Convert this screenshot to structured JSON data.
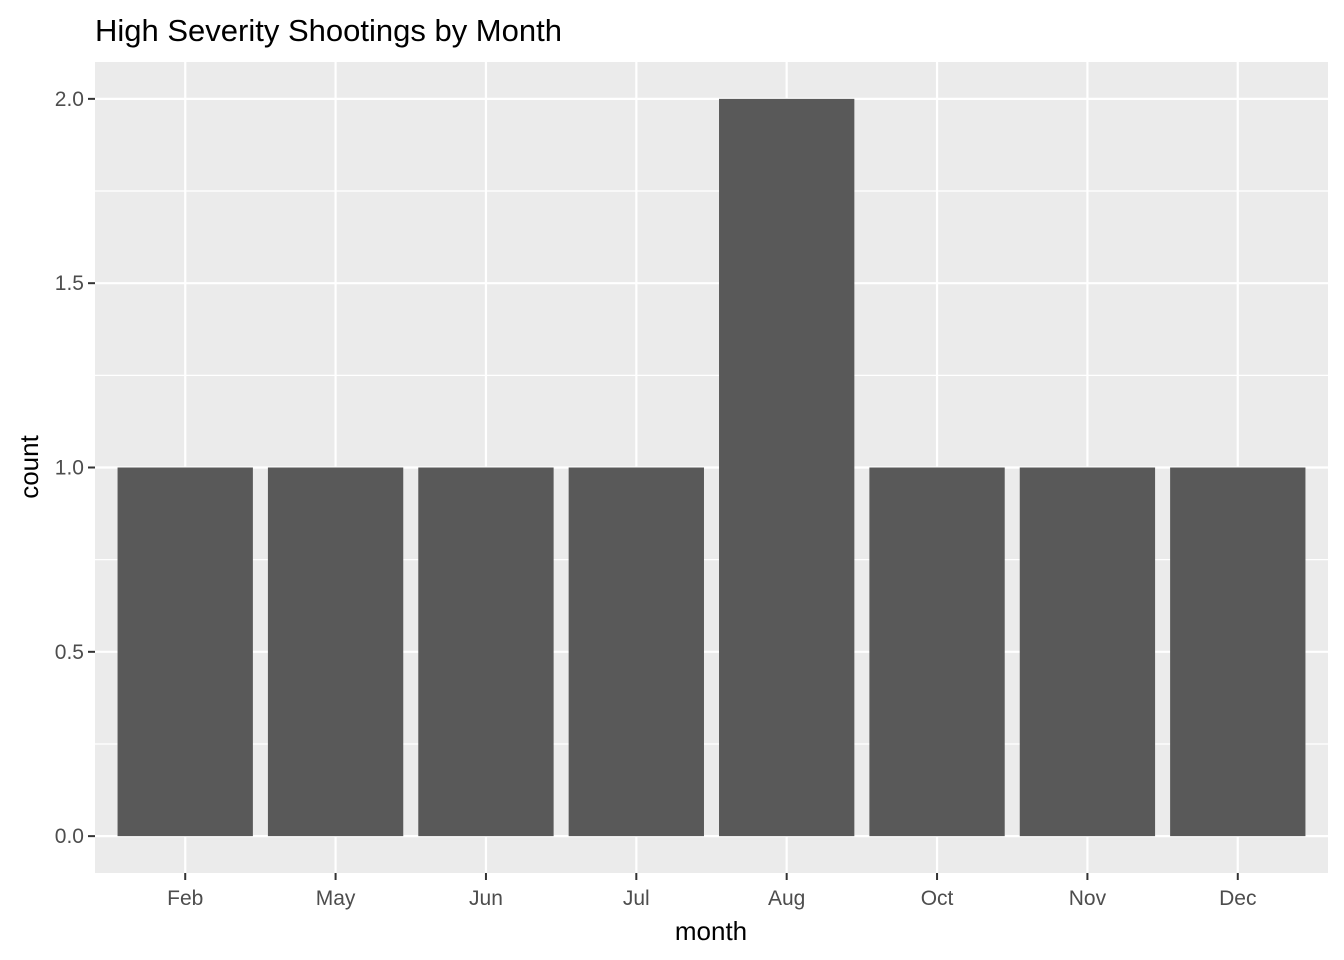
{
  "chart_data": {
    "type": "bar",
    "title": "High Severity Shootings by Month",
    "xlabel": "month",
    "ylabel": "count",
    "categories": [
      "Feb",
      "May",
      "Jun",
      "Jul",
      "Aug",
      "Oct",
      "Nov",
      "Dec"
    ],
    "values": [
      1,
      1,
      1,
      1,
      2,
      1,
      1,
      1
    ],
    "ylim": [
      -0.1,
      2.1
    ],
    "yticks": [
      0.0,
      0.5,
      1.0,
      1.5,
      2.0
    ],
    "ytick_labels": [
      "0.0",
      "0.5",
      "1.0",
      "1.5",
      "2.0"
    ],
    "grid": true,
    "legend": "none"
  },
  "colors": {
    "panel_background": "#ebebeb",
    "grid_line": "#ffffff",
    "bar_fill": "#595959",
    "tick_mark": "#333333",
    "tick_text": "#4d4d4d",
    "title_text": "#000000"
  }
}
